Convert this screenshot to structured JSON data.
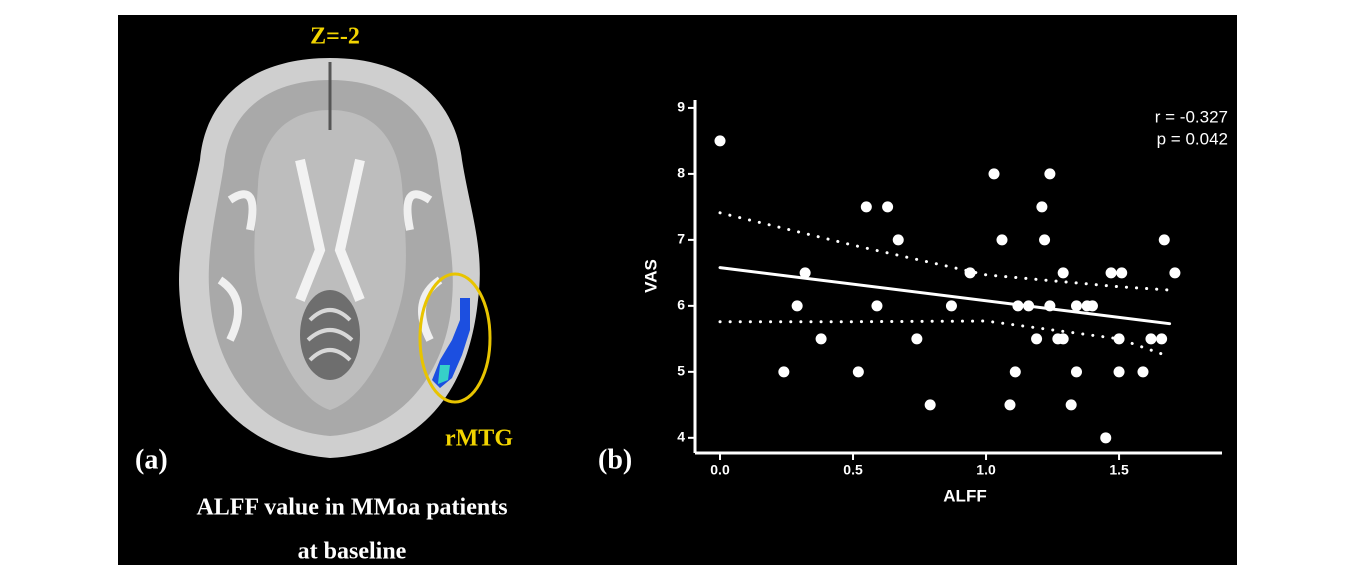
{
  "panel_a": {
    "slice_label": "Z=-2",
    "region_label": "rMTG",
    "panel_label": "(a)",
    "caption": [
      "ALFF value in MMoa patients",
      "at baseline"
    ]
  },
  "chart_data": {
    "type": "scatter",
    "panel_label": "(b)",
    "x_label": "ALFF",
    "y_label": "VAS",
    "annotations": [
      "r = -0.327",
      "p = 0.042"
    ],
    "color": "#ffffff",
    "x": [
      0.0,
      0.24,
      0.29,
      0.32,
      0.38,
      0.52,
      0.55,
      0.59,
      0.63,
      0.67,
      0.74,
      0.79,
      0.87,
      0.94,
      1.03,
      1.06,
      1.09,
      1.11,
      1.12,
      1.16,
      1.19,
      1.21,
      1.22,
      1.24,
      1.24,
      1.27,
      1.29,
      1.29,
      1.32,
      1.34,
      1.34,
      1.38,
      1.4,
      1.45,
      1.47,
      1.5,
      1.5,
      1.51,
      1.59,
      1.62,
      1.66,
      1.67,
      1.71
    ],
    "values": [
      8.5,
      5.0,
      6.0,
      6.5,
      5.5,
      5.0,
      7.5,
      6.0,
      7.5,
      7.0,
      5.5,
      4.5,
      6.0,
      6.5,
      8.0,
      7.0,
      4.5,
      5.0,
      6.0,
      6.0,
      5.5,
      7.5,
      7.0,
      8.0,
      6.0,
      5.5,
      5.5,
      6.5,
      4.5,
      6.0,
      5.0,
      6.0,
      6.0,
      4.0,
      6.5,
      5.5,
      5.0,
      6.5,
      5.0,
      5.5,
      5.5,
      7.0,
      6.5
    ],
    "fit": {
      "x": [
        0.0,
        1.69
      ],
      "values": [
        6.58,
        5.73
      ]
    },
    "ci_upper": {
      "x": [
        0.0,
        0.5,
        1.0,
        1.5,
        1.69
      ],
      "values": [
        7.41,
        6.92,
        6.47,
        6.29,
        6.24
      ]
    },
    "ci_lower": {
      "x": [
        0.0,
        0.5,
        1.0,
        1.5,
        1.69
      ],
      "values": [
        5.76,
        5.76,
        5.77,
        5.5,
        5.23
      ]
    },
    "xlim": [
      -0.094,
      1.887
    ],
    "ylim": [
      3.77,
      9.12
    ],
    "xticks": [
      {
        "value": 0,
        "label": "0.0"
      },
      0.5,
      {
        "value": 1,
        "label": "1.0"
      },
      1.5
    ],
    "yticks": [
      4,
      5,
      6,
      7,
      8,
      9
    ]
  }
}
